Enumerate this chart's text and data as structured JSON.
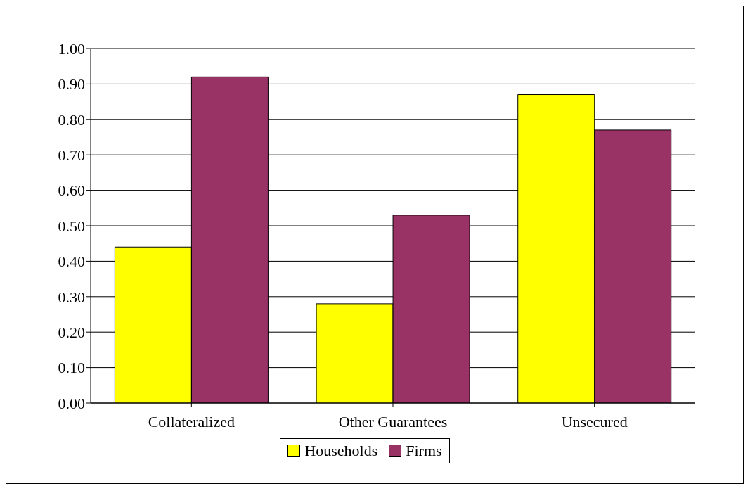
{
  "chart_data": {
    "type": "bar",
    "categories": [
      "Collateralized",
      "Other Guarantees",
      "Unsecured"
    ],
    "series": [
      {
        "name": "Households",
        "color": "#ffff00",
        "values": [
          0.44,
          0.28,
          0.87
        ]
      },
      {
        "name": "Firms",
        "color": "#993366",
        "values": [
          0.92,
          0.53,
          0.77
        ]
      }
    ],
    "ylim": [
      0,
      1
    ],
    "yticks": [
      {
        "value": 0,
        "label": "0.00"
      },
      {
        "value": 0.1,
        "label": "0.10"
      },
      {
        "value": 0.2,
        "label": "0.20"
      },
      {
        "value": 0.3,
        "label": "0.30"
      },
      {
        "value": 0.4,
        "label": "0.40"
      },
      {
        "value": 0.5,
        "label": "0.50"
      },
      {
        "value": 0.6,
        "label": "0.60"
      },
      {
        "value": 0.7,
        "label": "0.70"
      },
      {
        "value": 0.8,
        "label": "0.80"
      },
      {
        "value": 0.9,
        "label": "0.90"
      },
      {
        "value": 1,
        "label": "1.00"
      }
    ],
    "grid": "y",
    "legend": "bottom"
  }
}
